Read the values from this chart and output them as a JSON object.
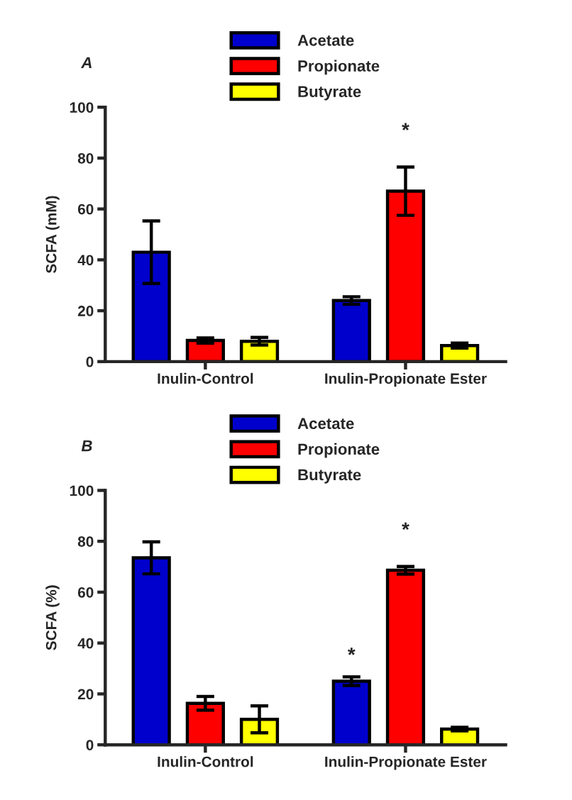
{
  "chart_data": [
    {
      "type": "bar",
      "title": "A",
      "ylabel": "SCFA (mM)",
      "categories": [
        "Inulin-Control",
        "Inulin-Propionate Ester"
      ],
      "series": [
        {
          "name": "Acetate",
          "color": "#0000cc",
          "values": [
            43,
            24
          ],
          "errors": [
            12.3,
            1.5
          ]
        },
        {
          "name": "Propionate",
          "color": "#ff0000",
          "values": [
            8.3,
            67
          ],
          "errors": [
            1,
            9.5
          ]
        },
        {
          "name": "Butyrate",
          "color": "#ffff00",
          "values": [
            8,
            6.3
          ],
          "errors": [
            1.5,
            1
          ]
        }
      ],
      "ylim": [
        0,
        100
      ],
      "yticks": [
        0,
        20,
        40,
        60,
        80,
        100
      ],
      "legend": "top",
      "annotations": [
        "*"
      ]
    },
    {
      "type": "bar",
      "title": "B",
      "ylabel": "SCFA (%)",
      "categories": [
        "Inulin-Control",
        "Inulin-Propionate Ester"
      ],
      "series": [
        {
          "name": "Acetate",
          "color": "#0000cc",
          "values": [
            73.5,
            25
          ],
          "errors": [
            6.3,
            1.7
          ]
        },
        {
          "name": "Propionate",
          "color": "#ff0000",
          "values": [
            16.3,
            68.6
          ],
          "errors": [
            2.7,
            1.5
          ]
        },
        {
          "name": "Butyrate",
          "color": "#ffff00",
          "values": [
            10,
            6.2
          ],
          "errors": [
            5.3,
            0.7
          ]
        }
      ],
      "ylim": [
        0,
        100
      ],
      "yticks": [
        0,
        20,
        40,
        60,
        80,
        100
      ],
      "legend": "top",
      "annotations": [
        "*",
        "*"
      ]
    }
  ]
}
